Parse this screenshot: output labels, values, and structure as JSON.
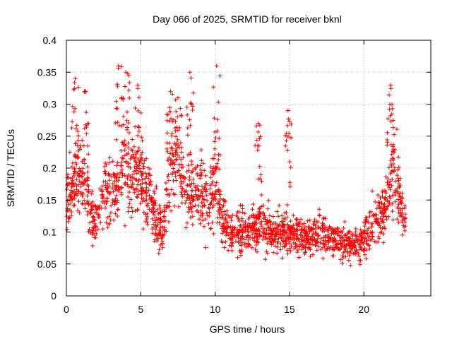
{
  "chart_data": {
    "type": "scatter",
    "title": "Day 066 of 2025, SRMTID for receiver bknl",
    "xlabel": "GPS time / hours",
    "ylabel": "SRMTID / TECUs",
    "xlim": [
      0,
      24.5
    ],
    "ylim": [
      0,
      0.4
    ],
    "xticks": [
      0,
      5,
      10,
      15,
      20
    ],
    "xtick_labels": [
      "0",
      "5",
      "10",
      "15",
      "20"
    ],
    "yticks": [
      0,
      0.05,
      0.1,
      0.15,
      0.2,
      0.25,
      0.3,
      0.35,
      0.4
    ],
    "ytick_labels": [
      "0",
      "0.05",
      "0.1",
      "0.15",
      "0.2",
      "0.25",
      "0.3",
      "0.35",
      "0.4"
    ],
    "grid": true,
    "marker": "+",
    "color": "#ff0000",
    "series": [
      {
        "name": "SRMTID",
        "trend_x": [
          0,
          0.5,
          1,
          1.5,
          2,
          2.5,
          3,
          3.5,
          4,
          4.5,
          5,
          5.5,
          6,
          6.5,
          7,
          7.5,
          8,
          8.5,
          9,
          9.5,
          10,
          10.5,
          11,
          12,
          13,
          14,
          15,
          16,
          17,
          18,
          19,
          19.5,
          20,
          20.5,
          21,
          21.5,
          22,
          22.5,
          22.8
        ],
        "trend_y": [
          0.15,
          0.18,
          0.19,
          0.14,
          0.11,
          0.17,
          0.16,
          0.18,
          0.2,
          0.19,
          0.18,
          0.17,
          0.12,
          0.1,
          0.2,
          0.21,
          0.15,
          0.17,
          0.16,
          0.15,
          0.17,
          0.12,
          0.1,
          0.1,
          0.11,
          0.1,
          0.1,
          0.09,
          0.1,
          0.09,
          0.08,
          0.08,
          0.09,
          0.11,
          0.12,
          0.14,
          0.2,
          0.15,
          0.11
        ],
        "spikes": [
          {
            "x": 0.6,
            "y": 0.34
          },
          {
            "x": 1.3,
            "y": 0.32
          },
          {
            "x": 3.5,
            "y": 0.36
          },
          {
            "x": 4.0,
            "y": 0.35
          },
          {
            "x": 4.8,
            "y": 0.33
          },
          {
            "x": 7.0,
            "y": 0.32
          },
          {
            "x": 7.5,
            "y": 0.31
          },
          {
            "x": 8.3,
            "y": 0.35
          },
          {
            "x": 10.1,
            "y": 0.36
          },
          {
            "x": 12.9,
            "y": 0.27
          },
          {
            "x": 14.9,
            "y": 0.29
          },
          {
            "x": 21.8,
            "y": 0.33
          }
        ]
      }
    ]
  }
}
